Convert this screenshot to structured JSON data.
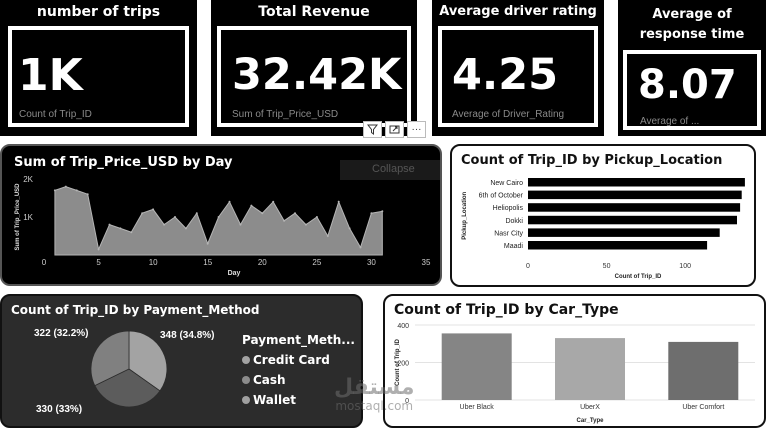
{
  "kpis": [
    {
      "title": "number of trips",
      "value": "1K",
      "sub": "Count of Trip_ID"
    },
    {
      "title": "Total Revenue",
      "value": "32.42K",
      "sub": "Sum of Trip_Price_USD"
    },
    {
      "title": "Average driver rating",
      "value": "4.25",
      "sub": "Average of Driver_Rating"
    },
    {
      "title": "Average of response time",
      "value": "8.07",
      "sub": "Average of ..."
    }
  ],
  "toolbar": {
    "filter_icon": "filter-icon",
    "focus_icon": "focus-mode-icon",
    "more_label": "···"
  },
  "tooltip_text": "Collapse",
  "charts": {
    "day": {
      "type": "area",
      "title": "Sum of Trip_Price_USD by Day",
      "xlabel": "Day",
      "ylabel": "Sum of Trip_Price_USD",
      "x_ticks": [
        "0",
        "5",
        "10",
        "15",
        "20",
        "25",
        "30",
        "35"
      ],
      "y_ticks": [
        "2K",
        "1K"
      ],
      "xlim": [
        0,
        35
      ],
      "ylim": [
        0,
        2000
      ],
      "x": [
        1,
        2,
        3,
        4,
        5,
        6,
        7,
        8,
        9,
        10,
        11,
        12,
        13,
        14,
        15,
        16,
        17,
        18,
        19,
        20,
        21,
        22,
        23,
        24,
        25,
        26,
        27,
        28,
        29,
        30,
        31
      ],
      "values": [
        1700,
        1800,
        1700,
        1600,
        150,
        800,
        700,
        600,
        1100,
        1200,
        800,
        1000,
        700,
        1100,
        300,
        1000,
        1400,
        800,
        1300,
        1100,
        1400,
        900,
        1100,
        800,
        1000,
        500,
        1400,
        700,
        200,
        1100,
        1150
      ],
      "color": "#8c8c8c"
    },
    "location": {
      "type": "bar",
      "title": "Count of Trip_ID by Pickup_Location",
      "xlabel": "Count of Trip_ID",
      "ylabel": "Pickup_Location",
      "categories": [
        "New Cairo",
        "6th of October",
        "Heliopolis",
        "Dokki",
        "Nasr City",
        "Maadi"
      ],
      "values": [
        138,
        136,
        135,
        133,
        122,
        114
      ],
      "x_ticks": [
        "0",
        "50",
        "100"
      ],
      "xlim": [
        0,
        140
      ],
      "color": "#000000"
    },
    "payment": {
      "type": "pie",
      "title": "Count of Trip_ID by Payment_Method",
      "legend_title": "Payment_Meth...",
      "slices": [
        {
          "name": "Credit Card",
          "value": 348,
          "label": "348 (34.8%)",
          "color": "#a3a3a3"
        },
        {
          "name": "Cash",
          "value": 330,
          "label": "330 (33%)",
          "color": "#5c5c5c"
        },
        {
          "name": "Wallet",
          "value": 322,
          "label": "322 (32.2%)",
          "color": "#808080"
        }
      ]
    },
    "car": {
      "type": "bar",
      "title": "Count of Trip_ID by Car_Type",
      "xlabel": "Car_Type",
      "ylabel": "Count of Trip_ID",
      "categories": [
        "Uber Black",
        "UberX",
        "Uber Comfort"
      ],
      "values": [
        355,
        330,
        310
      ],
      "y_ticks": [
        "400",
        "200",
        "0"
      ],
      "ylim": [
        0,
        400
      ],
      "colors": [
        "#858585",
        "#a8a8a8",
        "#6e6e6e"
      ]
    }
  },
  "watermark": {
    "main": "مستقل",
    "sub": "mostaql.com"
  }
}
